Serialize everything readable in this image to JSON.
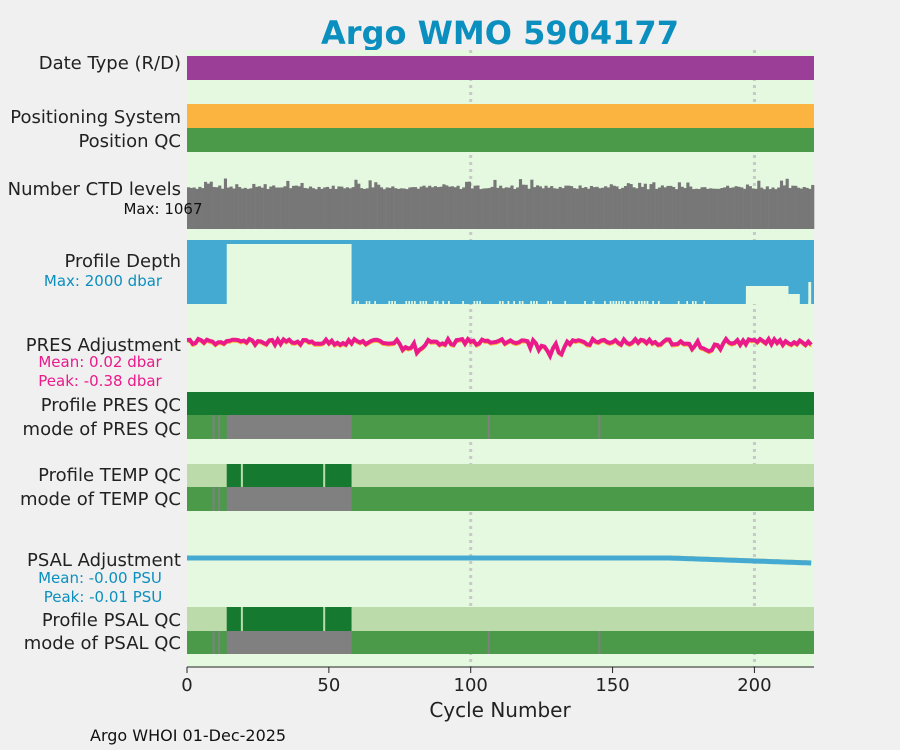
{
  "title": "Argo WMO 5904177",
  "footer": "Argo WHOI 01-Dec-2025",
  "colors": {
    "background": "#f0f0f0",
    "plot_bg": "#e5f9e0",
    "title": "#0b8fbf",
    "date_type": "#9b3e98",
    "positioning": "#fbb440",
    "qc_good": "#4a9a4a",
    "qc_dark": "#157a30",
    "qc_light": "#bcdbab",
    "qc_missing": "#808080",
    "ctd_bar": "#777777",
    "depth": "#45aad2",
    "pres_adj": "#ea1a8a",
    "pres_adj_shadow": "#fbb440",
    "psal_adj": "#45aad2",
    "psal_adj_shadow": "#fbb440",
    "grid": "#c8c8c8"
  },
  "chart_data": {
    "type": "timeline",
    "xlabel": "Cycle Number",
    "xlim": [
      0,
      221
    ],
    "xticks": [
      0,
      50,
      100,
      150,
      200
    ],
    "xgrid": [
      100,
      200
    ],
    "rows": [
      {
        "key": "date_type",
        "label": "Date Type (R/D)"
      },
      {
        "key": "positioning_system",
        "label": "Positioning System"
      },
      {
        "key": "position_qc",
        "label": "Position QC"
      },
      {
        "key": "ctd_levels",
        "label": "Number CTD levels",
        "sub_labels": [
          "Max: 1067"
        ],
        "max": 1067
      },
      {
        "key": "profile_depth",
        "label": "Profile Depth",
        "sub_labels": [
          "Max: 2000 dbar"
        ],
        "max": 2000,
        "shallow_cycles": [
          14,
          58
        ]
      },
      {
        "key": "pres_adjustment",
        "label": "PRES Adjustment",
        "sub_labels": [
          "Mean: 0.02 dbar",
          "Peak: -0.38 dbar"
        ],
        "mean": 0.02,
        "peak": -0.38
      },
      {
        "key": "profile_pres_qc",
        "label": "Profile PRES QC"
      },
      {
        "key": "mode_pres_qc",
        "label": "mode of PRES QC",
        "gray_range": [
          14,
          58
        ],
        "gray_ticks": [
          9,
          11,
          106,
          145
        ]
      },
      {
        "key": "profile_temp_qc",
        "label": "Profile TEMP QC",
        "dark_range": [
          14,
          58
        ],
        "light_ticks": [
          19,
          48
        ]
      },
      {
        "key": "mode_temp_qc",
        "label": "mode of TEMP QC",
        "gray_range": [
          14,
          58
        ],
        "gray_ticks": [
          9,
          11
        ]
      },
      {
        "key": "psal_adjustment",
        "label": "PSAL Adjustment",
        "sub_labels": [
          "Mean: -0.00 PSU",
          "Peak: -0.01 PSU"
        ],
        "mean": -0.0,
        "peak": -0.01
      },
      {
        "key": "profile_psal_qc",
        "label": "Profile PSAL QC",
        "dark_range": [
          14,
          58
        ],
        "light_ticks": [
          19,
          48
        ]
      },
      {
        "key": "mode_psal_qc",
        "label": "mode of PSAL QC",
        "gray_range": [
          14,
          58
        ],
        "gray_ticks": [
          9,
          11,
          106,
          145
        ]
      }
    ]
  }
}
